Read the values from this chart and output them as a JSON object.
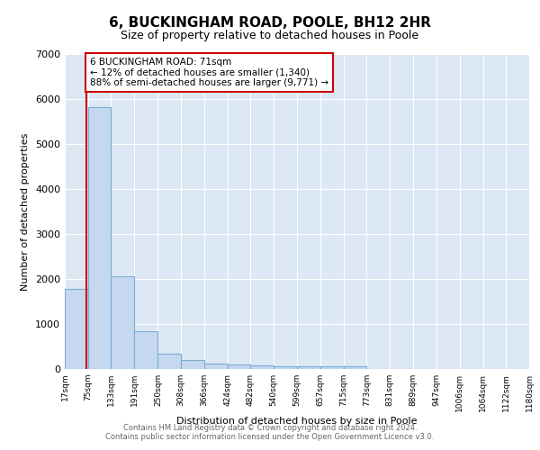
{
  "title": "6, BUCKINGHAM ROAD, POOLE, BH12 2HR",
  "subtitle": "Size of property relative to detached houses in Poole",
  "xlabel": "Distribution of detached houses by size in Poole",
  "ylabel": "Number of detached properties",
  "bar_color": "#c5d8f0",
  "bar_edge_color": "#7aadd4",
  "bg_color": "#dde8f5",
  "grid_color": "#ffffff",
  "annotation_box_color": "#cc0000",
  "annotation_text": "6 BUCKINGHAM ROAD: 71sqm\n← 12% of detached houses are smaller (1,340)\n88% of semi-detached houses are larger (9,771) →",
  "vline_x": 71,
  "vline_color": "#cc0000",
  "footnote": "Contains HM Land Registry data © Crown copyright and database right 2024.\nContains public sector information licensed under the Open Government Licence v3.0.",
  "bin_edges": [
    17,
    75,
    133,
    191,
    250,
    308,
    366,
    424,
    482,
    540,
    599,
    657,
    715,
    773,
    831,
    889,
    947,
    1006,
    1064,
    1122,
    1180
  ],
  "bin_counts": [
    1780,
    5820,
    2060,
    840,
    340,
    195,
    115,
    100,
    80,
    65,
    55,
    55,
    65,
    0,
    0,
    0,
    0,
    0,
    0,
    0
  ],
  "ylim": [
    0,
    7000
  ],
  "yticks": [
    0,
    1000,
    2000,
    3000,
    4000,
    5000,
    6000,
    7000
  ]
}
